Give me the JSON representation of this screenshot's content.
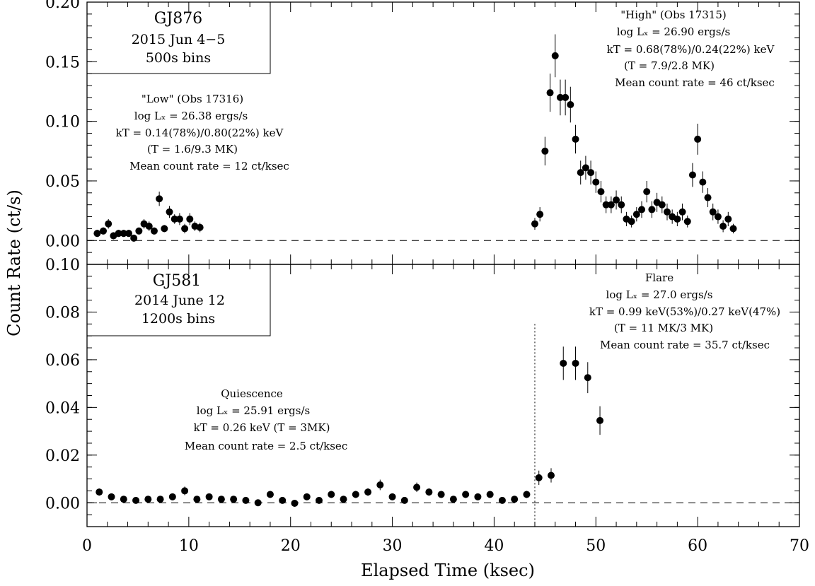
{
  "chart_data": [
    {
      "type": "scatter",
      "panel": "top",
      "title": "GJ876",
      "subtitle_lines": [
        "2015 Jun 4−5",
        "500s bins"
      ],
      "xlabel": "Elapsed Time (ksec)",
      "ylabel": "Count Rate (ct/s)",
      "xlim": [
        0,
        70
      ],
      "ylim": [
        -0.02,
        0.2
      ],
      "yticks": [
        "0.00",
        "0.05",
        "0.10",
        "0.15",
        "0.20"
      ],
      "reference_line_y": 0,
      "annotations": [
        {
          "id": "low",
          "lines": [
            "\"Low\" (Obs 17316)",
            "log Lₓ = 26.38 ergs/s",
            "kT = 0.14(78%)/0.80(22%) keV",
            "(T = 1.6/9.3 MK)",
            "Mean count rate = 12 ct/ksec"
          ]
        },
        {
          "id": "high",
          "lines": [
            "\"High\" (Obs 17315)",
            "log Lₓ = 26.90 ergs/s",
            "kT = 0.68(78%)/0.24(22%) keV",
            "(T = 7.9/2.8 MK)",
            "Mean count rate = 46 ct/ksec"
          ]
        }
      ],
      "series": [
        {
          "x": [
            1.0,
            1.6,
            2.1,
            2.6,
            3.1,
            3.6,
            4.1,
            4.6,
            5.1,
            5.6,
            6.1,
            6.6,
            7.1,
            7.6,
            8.1,
            8.6,
            9.1,
            9.6,
            10.1,
            10.6,
            11.1
          ],
          "y": [
            0.006,
            0.008,
            0.014,
            0.004,
            0.006,
            0.006,
            0.006,
            0.002,
            0.008,
            0.014,
            0.012,
            0.008,
            0.035,
            0.01,
            0.024,
            0.018,
            0.018,
            0.01,
            0.018,
            0.012,
            0.011
          ],
          "err": [
            0.003,
            0.003,
            0.004,
            0.003,
            0.003,
            0.003,
            0.003,
            0.003,
            0.003,
            0.004,
            0.004,
            0.003,
            0.006,
            0.003,
            0.005,
            0.004,
            0.005,
            0.004,
            0.005,
            0.004,
            0.004
          ]
        },
        {
          "x": [
            44.0,
            44.5,
            45.0,
            45.5,
            46.0,
            46.5,
            47.0,
            47.5,
            48.0,
            48.5,
            49.0,
            49.5,
            50.0,
            50.5,
            51.0,
            51.5,
            52.0,
            52.5,
            53.0,
            53.5,
            54.0,
            54.5,
            55.0,
            55.5,
            56.0,
            56.5,
            57.0,
            57.5,
            58.0,
            58.5,
            59.0,
            59.5,
            60.0,
            60.5,
            61.0,
            61.5,
            62.0,
            62.5,
            63.0,
            63.5
          ],
          "y": [
            0.014,
            0.022,
            0.075,
            0.124,
            0.155,
            0.12,
            0.12,
            0.114,
            0.085,
            0.057,
            0.061,
            0.057,
            0.049,
            0.041,
            0.03,
            0.03,
            0.034,
            0.03,
            0.018,
            0.016,
            0.022,
            0.026,
            0.041,
            0.026,
            0.032,
            0.03,
            0.024,
            0.02,
            0.018,
            0.024,
            0.016,
            0.055,
            0.085,
            0.049,
            0.036,
            0.024,
            0.02,
            0.012,
            0.018,
            0.01
          ],
          "err": [
            0.005,
            0.006,
            0.012,
            0.016,
            0.018,
            0.015,
            0.015,
            0.015,
            0.012,
            0.01,
            0.01,
            0.01,
            0.009,
            0.009,
            0.007,
            0.007,
            0.008,
            0.007,
            0.006,
            0.005,
            0.006,
            0.007,
            0.009,
            0.007,
            0.008,
            0.007,
            0.007,
            0.006,
            0.006,
            0.007,
            0.005,
            0.01,
            0.013,
            0.009,
            0.008,
            0.007,
            0.006,
            0.005,
            0.006,
            0.004
          ]
        }
      ]
    },
    {
      "type": "scatter",
      "panel": "bottom",
      "title": "GJ581",
      "subtitle_lines": [
        "2014 June 12",
        "1200s bins"
      ],
      "xlabel": "Elapsed Time (ksec)",
      "ylabel": "Count Rate (ct/s)",
      "xlim": [
        0,
        70
      ],
      "ylim": [
        -0.01,
        0.1
      ],
      "xticks": [
        "0",
        "10",
        "20",
        "30",
        "40",
        "50",
        "60",
        "70"
      ],
      "yticks": [
        "0.00",
        "0.02",
        "0.04",
        "0.06",
        "0.08",
        "0.10"
      ],
      "reference_line_y": 0,
      "vertical_marker_x": 44,
      "annotations": [
        {
          "id": "quiescence",
          "lines": [
            "Quiescence",
            "log Lₓ = 25.91 ergs/s",
            "kT = 0.26 keV (T = 3MK)",
            "Mean count rate = 2.5 ct/ksec"
          ]
        },
        {
          "id": "flare",
          "lines": [
            "Flare",
            "log Lₓ = 27.0 ergs/s",
            "kT = 0.99 keV(53%)/0.27 keV(47%)",
            "(T = 11 MK/3 MK)",
            "Mean count rate = 35.7 ct/ksec"
          ]
        }
      ],
      "series": [
        {
          "x": [
            1.2,
            2.4,
            3.6,
            4.8,
            6.0,
            7.2,
            8.4,
            9.6,
            10.8,
            12.0,
            13.2,
            14.4,
            15.6,
            16.8,
            18.0,
            19.2,
            20.4,
            21.6,
            22.8,
            24.0,
            25.2,
            26.4,
            27.6,
            28.8,
            30.0,
            31.2,
            32.4,
            33.6,
            34.8,
            36.0,
            37.2,
            38.4,
            39.6,
            40.8,
            42.0,
            43.2,
            44.4,
            45.6,
            46.8,
            48.0,
            49.2,
            50.4
          ],
          "y": [
            0.0045,
            0.0025,
            0.0015,
            0.001,
            0.0015,
            0.0015,
            0.0025,
            0.005,
            0.0015,
            0.0025,
            0.0015,
            0.0015,
            0.001,
            0.0,
            0.0035,
            0.001,
            -0.0002,
            0.0025,
            0.001,
            0.0035,
            0.0015,
            0.0035,
            0.0045,
            0.0075,
            0.0025,
            0.001,
            0.0065,
            0.0045,
            0.0035,
            0.0015,
            0.0035,
            0.0025,
            0.0035,
            0.001,
            0.0015,
            0.0035,
            0.0105,
            0.0115,
            0.0585,
            0.0585,
            0.0525,
            0.0345
          ],
          "err": [
            0.0015,
            0.0012,
            0.001,
            0.0008,
            0.001,
            0.001,
            0.0012,
            0.0018,
            0.001,
            0.0012,
            0.001,
            0.001,
            0.0008,
            0.0006,
            0.0015,
            0.0008,
            0.0004,
            0.0012,
            0.0008,
            0.0015,
            0.001,
            0.0015,
            0.0016,
            0.0022,
            0.0012,
            0.0008,
            0.002,
            0.0016,
            0.0015,
            0.001,
            0.0015,
            0.0012,
            0.0015,
            0.0008,
            0.001,
            0.0015,
            0.003,
            0.003,
            0.007,
            0.007,
            0.0065,
            0.006
          ]
        }
      ]
    }
  ]
}
